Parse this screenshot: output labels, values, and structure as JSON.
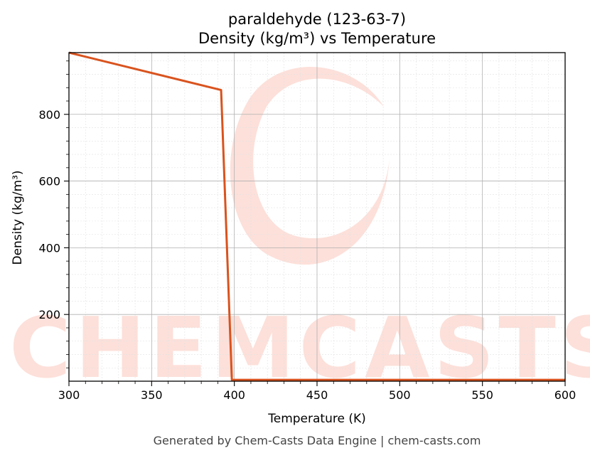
{
  "chart_data": {
    "type": "line",
    "title": "paraldehyde (123-63-7)",
    "subtitle": "Density (kg/m³) vs Temperature",
    "xlabel": "Temperature (K)",
    "ylabel": "Density (kg/m³)",
    "xlim": [
      300,
      600
    ],
    "ylim": [
      0,
      985
    ],
    "xticks": [
      300,
      350,
      400,
      450,
      500,
      550,
      600
    ],
    "yticks": [
      200,
      400,
      600,
      800
    ],
    "grid": true,
    "series": [
      {
        "color": "#d9531e",
        "x": [
          300,
          392,
          398.5,
          400,
          450,
          500,
          550,
          600
        ],
        "y": [
          985,
          873,
          4,
          4,
          4,
          4,
          4,
          4
        ]
      }
    ]
  },
  "footer": "Generated by Chem-Casts Data Engine | chem-casts.com",
  "watermark": {
    "text": "CHEMCASTS",
    "color": "#fde0da"
  }
}
